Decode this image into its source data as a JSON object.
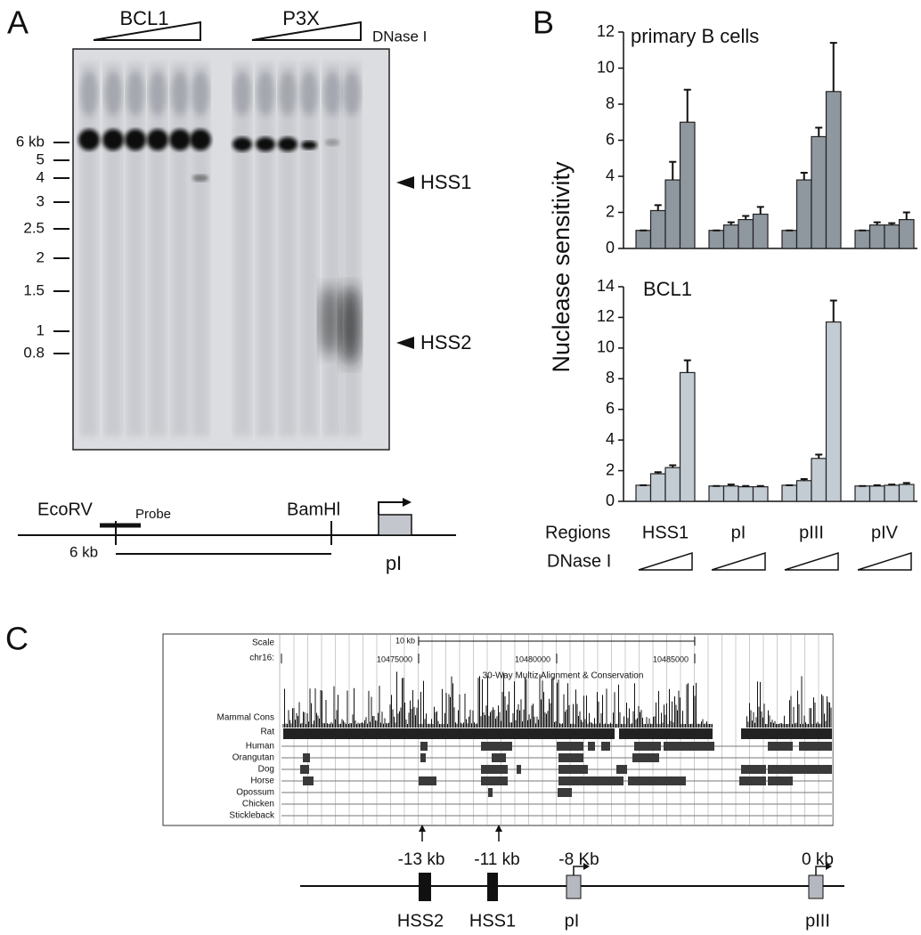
{
  "panels": {
    "a": "A",
    "b": "B",
    "c": "C"
  },
  "gel": {
    "cell_line_1": "BCL1",
    "cell_line_2": "P3X",
    "treatment": "DNase I",
    "size_markers": [
      "6 kb",
      "5",
      "4",
      "3",
      "2.5",
      "2",
      "1.5",
      "1",
      "0.8"
    ],
    "sites": [
      "HSS1",
      "HSS2"
    ]
  },
  "map_a": {
    "left_site": "EcoRV",
    "probe": "Probe",
    "right_site": "BamHl",
    "fragment": "6 kb",
    "promoter": "pI"
  },
  "panel_b": {
    "ylabel": "Nuclease sensitivity",
    "regions_label": "Regions",
    "dnase_label": "DNase I"
  },
  "chart_data": [
    {
      "type": "bar",
      "title": "primary B cells",
      "color": "#8f979f",
      "ylim": [
        0,
        12
      ],
      "yticks": [
        0,
        2,
        4,
        6,
        8,
        10,
        12
      ],
      "series": [
        {
          "values": [
            1,
            1,
            1,
            1
          ],
          "errors": [
            0,
            0,
            0,
            0
          ]
        },
        {
          "values": [
            2.1,
            1.3,
            3.8,
            1.3
          ],
          "errors": [
            0.3,
            0.15,
            0.4,
            0.15
          ]
        },
        {
          "values": [
            3.8,
            1.6,
            6.2,
            1.3
          ],
          "errors": [
            1.0,
            0.2,
            0.5,
            0.1
          ]
        },
        {
          "values": [
            7.0,
            1.9,
            8.7,
            1.6
          ],
          "errors": [
            1.8,
            0.4,
            2.7,
            0.4
          ]
        }
      ]
    },
    {
      "type": "bar",
      "title": "BCL1",
      "color": "#c3cbd3",
      "categories": [
        "HSS1",
        "pI",
        "pIII",
        "pIV"
      ],
      "ylim": [
        0,
        14
      ],
      "yticks": [
        0,
        2,
        4,
        6,
        8,
        10,
        12,
        14
      ],
      "series": [
        {
          "values": [
            1.05,
            1.0,
            1.05,
            1.0
          ],
          "errors": [
            0,
            0,
            0,
            0
          ]
        },
        {
          "values": [
            1.8,
            1.0,
            1.35,
            1.0
          ],
          "errors": [
            0.1,
            0.1,
            0.1,
            0.05
          ]
        },
        {
          "values": [
            2.2,
            0.95,
            2.8,
            1.05
          ],
          "errors": [
            0.15,
            0.05,
            0.25,
            0.05
          ]
        },
        {
          "values": [
            8.4,
            0.95,
            11.7,
            1.1
          ],
          "errors": [
            0.8,
            0.05,
            1.4,
            0.1
          ]
        }
      ]
    }
  ],
  "browser": {
    "scale_label": "Scale",
    "scale_size": "10 kb",
    "chrom": "chr16:",
    "positions": [
      "10475000",
      "10480000",
      "10485000"
    ],
    "track_title": "30-Way Multiz Alignment & Conservation",
    "tracks": [
      "Mammal Cons",
      "Rat",
      "Human",
      "Orangutan",
      "Dog",
      "Horse",
      "Opossum",
      "Chicken",
      "Stickleback"
    ]
  },
  "map_c": {
    "distances": [
      "-13 kb",
      "-11 kb",
      "-8 Kb",
      "0 kb"
    ],
    "elements": [
      "HSS2",
      "HSS1",
      "pI",
      "pIII"
    ]
  }
}
